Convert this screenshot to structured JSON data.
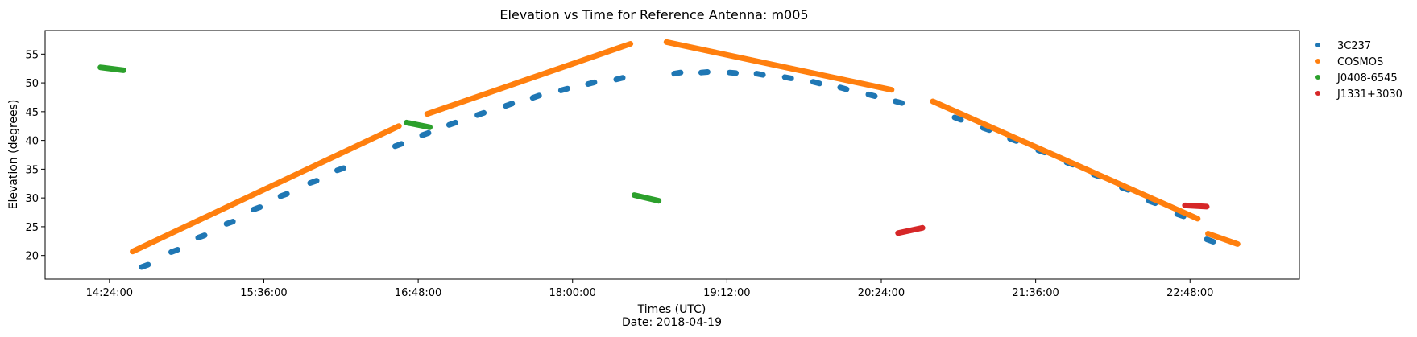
{
  "chart_data": {
    "type": "scatter",
    "title": "Elevation vs Time for Reference Antenna: m005",
    "xlabel": "Times (UTC)",
    "xlabel_sub": "Date: 2018-04-19",
    "ylabel": "Elevation (degrees)",
    "x_unit": "UTC time of day (hours)",
    "xlim": [
      13.9,
      23.65
    ],
    "ylim": [
      15.9,
      59.1
    ],
    "x_ticks": [
      {
        "value": 14.4,
        "label": "14:24:00"
      },
      {
        "value": 15.6,
        "label": "15:36:00"
      },
      {
        "value": 16.8,
        "label": "16:48:00"
      },
      {
        "value": 18.0,
        "label": "18:00:00"
      },
      {
        "value": 19.2,
        "label": "19:12:00"
      },
      {
        "value": 20.4,
        "label": "20:24:00"
      },
      {
        "value": 21.6,
        "label": "21:36:00"
      },
      {
        "value": 22.8,
        "label": "22:48:00"
      }
    ],
    "y_ticks": [
      20,
      25,
      30,
      35,
      40,
      45,
      50,
      55
    ],
    "grid": false,
    "legend_position": "outside-right-top",
    "series": [
      {
        "name": "3C237",
        "color": "#1f77b4",
        "segments": [
          [
            [
              14.65,
              18.0
            ],
            [
              14.7,
              18.4
            ]
          ],
          [
            [
              14.88,
              20.6
            ],
            [
              14.93,
              21.0
            ]
          ],
          [
            [
              15.09,
              23.1
            ],
            [
              15.14,
              23.5
            ]
          ],
          [
            [
              15.31,
              25.5
            ],
            [
              15.36,
              25.9
            ]
          ],
          [
            [
              15.52,
              28.0
            ],
            [
              15.57,
              28.4
            ]
          ],
          [
            [
              15.73,
              30.3
            ],
            [
              15.78,
              30.7
            ]
          ],
          [
            [
              15.96,
              32.6
            ],
            [
              16.01,
              33.0
            ]
          ],
          [
            [
              16.17,
              34.8
            ],
            [
              16.22,
              35.2
            ]
          ],
          [
            [
              16.62,
              39.0
            ],
            [
              16.67,
              39.4
            ]
          ],
          [
            [
              16.83,
              40.9
            ],
            [
              16.88,
              41.3
            ]
          ],
          [
            [
              17.04,
              42.7
            ],
            [
              17.09,
              43.1
            ]
          ],
          [
            [
              17.26,
              44.4
            ],
            [
              17.31,
              44.8
            ]
          ],
          [
            [
              17.48,
              46.0
            ],
            [
              17.53,
              46.4
            ]
          ],
          [
            [
              17.69,
              47.4
            ],
            [
              17.74,
              47.8
            ]
          ],
          [
            [
              17.91,
              48.7
            ],
            [
              17.96,
              49.0
            ]
          ],
          [
            [
              18.12,
              49.8
            ],
            [
              18.17,
              50.1
            ]
          ],
          [
            [
              18.34,
              50.6
            ],
            [
              18.39,
              50.9
            ]
          ],
          [
            [
              18.79,
              51.6
            ],
            [
              18.84,
              51.8
            ]
          ],
          [
            [
              19.0,
              51.8
            ],
            [
              19.05,
              51.9
            ]
          ],
          [
            [
              19.22,
              51.8
            ],
            [
              19.27,
              51.7
            ]
          ],
          [
            [
              19.43,
              51.6
            ],
            [
              19.48,
              51.4
            ]
          ],
          [
            [
              19.65,
              51.0
            ],
            [
              19.7,
              50.8
            ]
          ],
          [
            [
              19.87,
              50.2
            ],
            [
              19.92,
              49.9
            ]
          ],
          [
            [
              20.08,
              49.2
            ],
            [
              20.13,
              48.9
            ]
          ],
          [
            [
              20.3,
              48.0
            ],
            [
              20.35,
              47.7
            ]
          ],
          [
            [
              20.51,
              46.8
            ],
            [
              20.56,
              46.5
            ]
          ],
          [
            [
              20.97,
              44.0
            ],
            [
              21.02,
              43.6
            ]
          ],
          [
            [
              21.19,
              42.2
            ],
            [
              21.24,
              41.8
            ]
          ],
          [
            [
              21.4,
              40.3
            ],
            [
              21.45,
              39.9
            ]
          ],
          [
            [
              21.62,
              38.3
            ],
            [
              21.67,
              37.9
            ]
          ],
          [
            [
              21.84,
              36.2
            ],
            [
              21.89,
              35.8
            ]
          ],
          [
            [
              22.05,
              34.1
            ],
            [
              22.1,
              33.7
            ]
          ],
          [
            [
              22.27,
              31.8
            ],
            [
              22.32,
              31.4
            ]
          ],
          [
            [
              22.48,
              29.5
            ],
            [
              22.53,
              29.1
            ]
          ],
          [
            [
              22.7,
              27.2
            ],
            [
              22.75,
              26.8
            ]
          ],
          [
            [
              22.93,
              22.8
            ],
            [
              22.98,
              22.4
            ]
          ]
        ]
      },
      {
        "name": "COSMOS",
        "color": "#ff7f0e",
        "segments": [
          [
            [
              14.58,
              20.7
            ],
            [
              16.65,
              42.5
            ]
          ],
          [
            [
              16.87,
              44.6
            ],
            [
              18.45,
              56.8
            ]
          ],
          [
            [
              18.73,
              57.1
            ],
            [
              20.48,
              48.8
            ]
          ],
          [
            [
              20.8,
              46.8
            ],
            [
              22.86,
              26.4
            ]
          ],
          [
            [
              22.94,
              23.8
            ],
            [
              23.17,
              22.0
            ]
          ]
        ]
      },
      {
        "name": "J0408-6545",
        "color": "#2ca02c",
        "segments": [
          [
            [
              14.33,
              52.7
            ],
            [
              14.51,
              52.2
            ]
          ],
          [
            [
              16.71,
              43.1
            ],
            [
              16.89,
              42.3
            ]
          ],
          [
            [
              18.48,
              30.5
            ],
            [
              18.67,
              29.5
            ]
          ]
        ]
      },
      {
        "name": "J1331+3030",
        "color": "#d62728",
        "segments": [
          [
            [
              20.53,
              23.9
            ],
            [
              20.72,
              24.8
            ]
          ],
          [
            [
              22.76,
              28.7
            ],
            [
              22.93,
              28.5
            ]
          ]
        ]
      }
    ]
  }
}
